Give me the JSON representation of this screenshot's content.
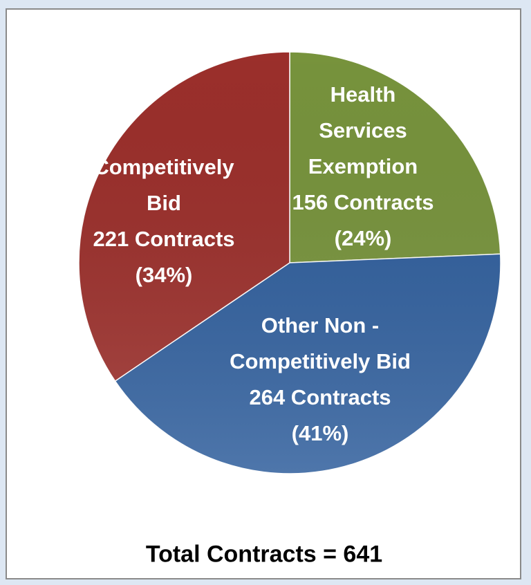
{
  "chart_data": {
    "type": "pie",
    "categories": [
      "Health\nServices\nExemption",
      "Other Non -\nCompetitively Bid",
      "Competitively\nBid"
    ],
    "values": [
      156,
      264,
      221
    ],
    "value_labels": [
      "156 Contracts",
      "264 Contracts",
      "221 Contracts"
    ],
    "percent_labels": [
      "(24%)",
      "(41%)",
      "(34%)"
    ],
    "colors": [
      "#77933c",
      "#2f5e9c",
      "#9b2f2b"
    ],
    "annotation": "Total Contracts = 641"
  }
}
